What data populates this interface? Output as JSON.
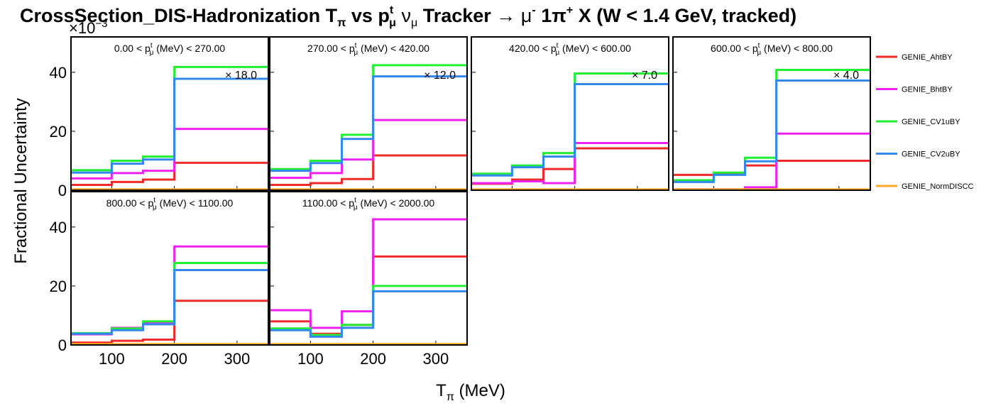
{
  "chart_data": {
    "type": "line",
    "style": "step-histogram",
    "title_parts": {
      "a": "CrossSection_DIS-Hadronization T",
      "a_sub": "π",
      "b": " vs p",
      "b_sup": "t",
      "b_sub": "μ",
      "c": " ν",
      "c_sub": "μ",
      "d": " Tracker ",
      "arrow": "→",
      "e": " μ",
      "e_sup": "-",
      "f": " 1π",
      "f_sup": "+",
      "g": " X  (W < 1.4 GeV, tracked)"
    },
    "y_exponent": "×10",
    "y_exponent_power": "−3",
    "ylabel": "Fractional Uncertainty",
    "xlabel_main": "T",
    "xlabel_sub": "π",
    "xlabel_unit": " (MeV)",
    "x_range": [
      35,
      350
    ],
    "y_range": [
      0,
      52
    ],
    "x_ticks": [
      "100",
      "200",
      "300"
    ],
    "x_tick_values": [
      100,
      200,
      300
    ],
    "y_ticks": [
      "0",
      "20",
      "40"
    ],
    "y_tick_values": [
      0,
      20,
      40
    ],
    "bin_edges": [
      35,
      100,
      150,
      200,
      350
    ],
    "legend": [
      {
        "name": "GENIE_AhtBY",
        "color": "#ee2a2a"
      },
      {
        "name": "GENIE_BhtBY",
        "color": "#ee22ee"
      },
      {
        "name": "GENIE_CV1uBY",
        "color": "#22ee33"
      },
      {
        "name": "GENIE_CV2uBY",
        "color": "#3388ee"
      },
      {
        "name": "GENIE_NormDISCC",
        "color": "#ffaa22"
      }
    ],
    "panels": [
      {
        "label_lo": "0.00 < p",
        "label_hi": " (MeV) < 270.00",
        "scale": "× 18.0",
        "series": {
          "GENIE_AhtBY": [
            1.8,
            2.8,
            3.6,
            9.3
          ],
          "GENIE_BhtBY": [
            4.0,
            5.8,
            6.6,
            20.8
          ],
          "GENIE_CV1uBY": [
            6.8,
            10.0,
            11.4,
            41.8
          ],
          "GENIE_CV2uBY": [
            6.0,
            9.0,
            10.4,
            37.8
          ],
          "GENIE_NormDISCC": [
            0.3,
            0.3,
            0.3,
            0.3
          ]
        }
      },
      {
        "label_lo": "270.00 < p",
        "label_hi": " (MeV) < 420.00",
        "scale": "× 12.0",
        "series": {
          "GENIE_AhtBY": [
            1.8,
            2.4,
            3.8,
            11.8
          ],
          "GENIE_BhtBY": [
            4.2,
            5.8,
            10.4,
            23.8
          ],
          "GENIE_CV1uBY": [
            7.2,
            10.0,
            18.8,
            42.4
          ],
          "GENIE_CV2uBY": [
            6.6,
            9.2,
            17.4,
            38.6
          ],
          "GENIE_NormDISCC": [
            0.3,
            0.3,
            0.3,
            0.3
          ]
        }
      },
      {
        "label_lo": "420.00 < p",
        "label_hi": " (MeV) < 600.00",
        "scale": "× 7.0",
        "series": {
          "GENIE_AhtBY": [
            2.2,
            3.6,
            7.2,
            14.2
          ],
          "GENIE_BhtBY": [
            2.4,
            3.0,
            2.4,
            16.0
          ],
          "GENIE_CV1uBY": [
            5.6,
            8.4,
            12.6,
            39.6
          ],
          "GENIE_CV2uBY": [
            5.0,
            7.8,
            11.4,
            36.0
          ],
          "GENIE_NormDISCC": [
            0.3,
            0.3,
            0.3,
            0.3
          ]
        }
      },
      {
        "label_lo": "600.00 < p",
        "label_hi": " (MeV) < 800.00",
        "scale": "× 4.0",
        "series": {
          "GENIE_AhtBY": [
            5.2,
            5.6,
            8.4,
            10.0
          ],
          "GENIE_BhtBY": [
            0.3,
            0.3,
            1.0,
            19.2
          ],
          "GENIE_CV1uBY": [
            3.4,
            6.0,
            11.0,
            40.8
          ],
          "GENIE_CV2uBY": [
            2.8,
            5.2,
            9.8,
            37.2
          ],
          "GENIE_NormDISCC": [
            0.3,
            0.3,
            0.3,
            0.3
          ]
        }
      },
      {
        "label_lo": "800.00 < p",
        "label_hi": " (MeV) < 1100.00",
        "scale": "",
        "series": {
          "GENIE_AhtBY": [
            0.8,
            1.4,
            1.8,
            15.0
          ],
          "GENIE_BhtBY": [
            3.6,
            5.8,
            7.4,
            33.4
          ],
          "GENIE_CV1uBY": [
            4.0,
            5.6,
            8.0,
            27.8
          ],
          "GENIE_CV2uBY": [
            3.8,
            5.0,
            7.0,
            25.4
          ],
          "GENIE_NormDISCC": [
            0.3,
            0.3,
            0.3,
            0.3
          ]
        }
      },
      {
        "label_lo": "1100.00 < p",
        "label_hi": " (MeV) < 2000.00",
        "scale": "",
        "series": {
          "GENIE_AhtBY": [
            8.0,
            3.8,
            6.8,
            30.0
          ],
          "GENIE_BhtBY": [
            11.8,
            5.8,
            11.4,
            42.6
          ],
          "GENIE_CV1uBY": [
            5.6,
            3.4,
            6.8,
            20.0
          ],
          "GENIE_CV2uBY": [
            5.0,
            2.8,
            5.8,
            18.2
          ],
          "GENIE_NormDISCC": [
            0.3,
            0.3,
            0.3,
            0.3
          ]
        }
      }
    ]
  }
}
